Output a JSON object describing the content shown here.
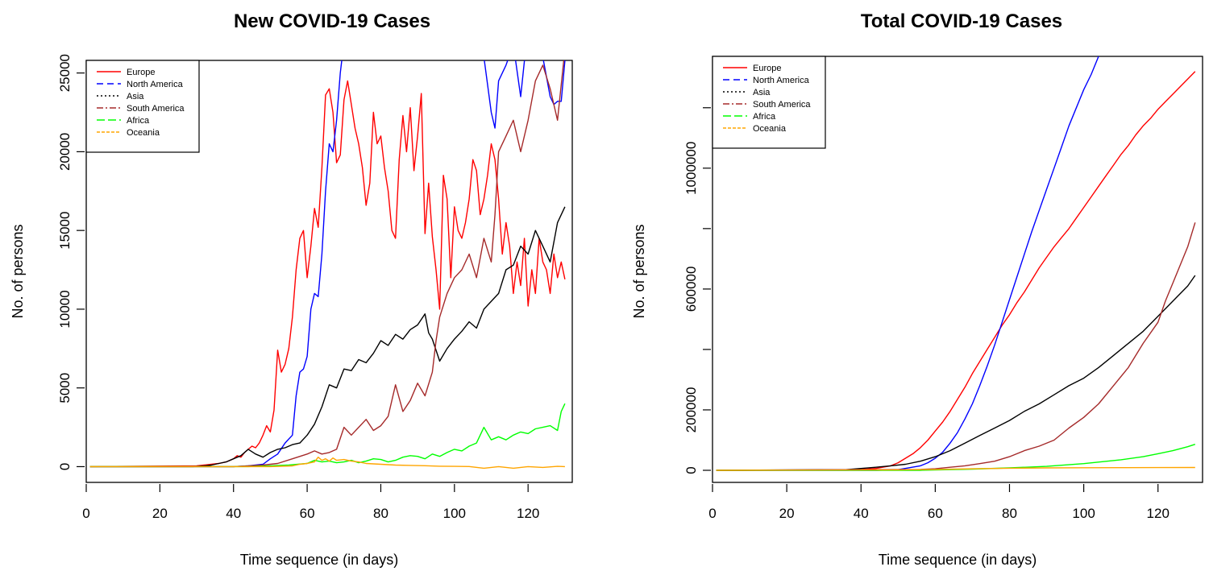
{
  "chart_data": [
    {
      "type": "line",
      "title": "New COVID-19 Cases",
      "xlabel": "Time sequence (in days)",
      "ylabel": "No. of persons",
      "xlim": [
        0,
        132
      ],
      "ylim": [
        -1000,
        25800
      ],
      "xticks": [
        0,
        20,
        40,
        60,
        80,
        100,
        120
      ],
      "yticks": [
        0,
        5000,
        10000,
        15000,
        20000,
        25000
      ],
      "ytick_labels": [
        "0",
        "5000",
        "10000",
        "15000",
        "20000",
        "25000"
      ],
      "grid": false,
      "legend_position": "top-left",
      "series": [
        {
          "name": "Europe",
          "color": "#ff0000",
          "dash": "solid",
          "x": [
            1,
            30,
            32,
            34,
            36,
            38,
            40,
            41,
            42,
            43,
            44,
            45,
            46,
            47,
            48,
            49,
            50,
            51,
            52,
            53,
            54,
            55,
            56,
            57,
            58,
            59,
            60,
            61,
            62,
            63,
            64,
            65,
            66,
            67,
            68,
            69,
            70,
            71,
            72,
            73,
            74,
            75,
            76,
            77,
            78,
            79,
            80,
            81,
            82,
            83,
            84,
            85,
            86,
            87,
            88,
            89,
            90,
            91,
            92,
            93,
            94,
            95,
            96,
            97,
            98,
            99,
            100,
            101,
            102,
            103,
            104,
            105,
            106,
            107,
            108,
            109,
            110,
            111,
            112,
            113,
            114,
            115,
            116,
            117,
            118,
            119,
            120,
            121,
            122,
            123,
            124,
            125,
            126,
            127,
            128,
            129,
            130
          ],
          "values": [
            0,
            50,
            100,
            150,
            200,
            300,
            500,
            700,
            600,
            900,
            1100,
            1300,
            1200,
            1500,
            2000,
            2600,
            2200,
            3600,
            7400,
            6000,
            6500,
            7500,
            9500,
            12500,
            14500,
            15000,
            12000,
            14000,
            16400,
            15200,
            19000,
            23600,
            24000,
            22500,
            19300,
            19800,
            23300,
            24500,
            23000,
            21500,
            20500,
            19000,
            16600,
            18000,
            22500,
            20500,
            21000,
            19000,
            17500,
            15000,
            14500,
            19500,
            22300,
            20000,
            22800,
            18800,
            21000,
            23700,
            14800,
            18000,
            14600,
            12500,
            10000,
            18500,
            17000,
            12000,
            16500,
            15000,
            14500,
            15500,
            17000,
            19500,
            18800,
            16000,
            17000,
            18500,
            20500,
            19500,
            17000,
            13500,
            15500,
            14000,
            11000,
            13000,
            11500,
            14500,
            10200,
            12500,
            11000,
            14500,
            13000,
            12500,
            11000,
            13500,
            12000,
            13000,
            11900
          ]
        },
        {
          "name": "North America",
          "color": "#0000ff",
          "dash": "8,5",
          "x": [
            1,
            40,
            44,
            48,
            50,
            52,
            54,
            56,
            57,
            58,
            59,
            60,
            61,
            62,
            63,
            64,
            65,
            66,
            67,
            68,
            69,
            70,
            72,
            74,
            76,
            78,
            80,
            82,
            84,
            86,
            88,
            90,
            92,
            94,
            96,
            98,
            100,
            102,
            104,
            106,
            108,
            110,
            111,
            112,
            114,
            116,
            118,
            120,
            122,
            124,
            126,
            127,
            128,
            129,
            130
          ],
          "values": [
            0,
            0,
            50,
            150,
            500,
            800,
            1500,
            2000,
            4500,
            6000,
            6200,
            7000,
            10000,
            11000,
            10800,
            13500,
            17500,
            20500,
            20000,
            22000,
            25000,
            27000,
            28500,
            28000,
            27500,
            28000,
            29000,
            28500,
            28000,
            27800,
            28000,
            27500,
            28000,
            29000,
            27600,
            28500,
            28000,
            27500,
            28500,
            27000,
            26000,
            22500,
            21500,
            24500,
            25500,
            26800,
            23500,
            28000,
            27000,
            26000,
            23500,
            23000,
            23200,
            23200,
            25800
          ]
        },
        {
          "name": "Asia",
          "color": "#000000",
          "dash": "2,3",
          "x": [
            1,
            29,
            32,
            34,
            36,
            38,
            40,
            42,
            44,
            46,
            48,
            50,
            52,
            54,
            56,
            58,
            60,
            62,
            64,
            66,
            68,
            70,
            72,
            74,
            76,
            78,
            80,
            82,
            84,
            86,
            88,
            90,
            92,
            93,
            94,
            96,
            98,
            100,
            102,
            104,
            106,
            108,
            110,
            112,
            114,
            116,
            118,
            120,
            122,
            124,
            126,
            128,
            130
          ],
          "values": [
            0,
            0,
            50,
            100,
            200,
            300,
            500,
            700,
            1100,
            800,
            600,
            900,
            1100,
            1200,
            1400,
            1500,
            2000,
            2700,
            3800,
            5200,
            5000,
            6200,
            6100,
            6800,
            6600,
            7200,
            8000,
            7700,
            8400,
            8100,
            8700,
            9000,
            9700,
            8500,
            8100,
            6700,
            7500,
            8100,
            8600,
            9200,
            8800,
            10000,
            10500,
            11000,
            12500,
            12800,
            14000,
            13500,
            15000,
            14000,
            13000,
            15500,
            16500
          ]
        },
        {
          "name": "South America",
          "color": "#a52a2a",
          "dash": "8,3,2,3",
          "x": [
            1,
            40,
            44,
            48,
            52,
            56,
            60,
            62,
            64,
            66,
            68,
            70,
            72,
            74,
            76,
            78,
            80,
            82,
            84,
            86,
            88,
            90,
            92,
            94,
            95,
            96,
            98,
            100,
            102,
            104,
            106,
            108,
            110,
            111,
            112,
            114,
            116,
            118,
            120,
            122,
            124,
            126,
            128,
            130
          ],
          "values": [
            0,
            0,
            50,
            100,
            200,
            500,
            800,
            1000,
            800,
            900,
            1100,
            2500,
            2000,
            2500,
            3000,
            2300,
            2600,
            3200,
            5200,
            3500,
            4200,
            5300,
            4500,
            6000,
            8000,
            9500,
            11000,
            12000,
            12500,
            13500,
            12000,
            14500,
            13000,
            16000,
            20000,
            21000,
            22000,
            20000,
            22000,
            24500,
            25500,
            24000,
            22000,
            26500
          ]
        },
        {
          "name": "Africa",
          "color": "#00ff00",
          "dash": "10,4",
          "x": [
            1,
            44,
            50,
            55,
            60,
            62,
            64,
            66,
            68,
            70,
            72,
            74,
            76,
            78,
            80,
            82,
            84,
            86,
            88,
            90,
            92,
            94,
            96,
            98,
            100,
            102,
            104,
            106,
            108,
            110,
            112,
            114,
            116,
            118,
            120,
            122,
            124,
            126,
            128,
            129,
            130
          ],
          "values": [
            0,
            0,
            50,
            100,
            200,
            400,
            300,
            350,
            250,
            300,
            400,
            250,
            350,
            500,
            450,
            300,
            400,
            600,
            700,
            650,
            500,
            800,
            650,
            900,
            1100,
            1000,
            1300,
            1500,
            2500,
            1700,
            1900,
            1700,
            2000,
            2200,
            2100,
            2400,
            2500,
            2600,
            2300,
            3500,
            4000
          ]
        },
        {
          "name": "Oceania",
          "color": "#ffa500",
          "dash": "4,2",
          "x": [
            1,
            50,
            56,
            58,
            60,
            62,
            63,
            64,
            65,
            66,
            67,
            68,
            70,
            72,
            74,
            76,
            80,
            84,
            88,
            92,
            96,
            100,
            104,
            108,
            112,
            116,
            120,
            124,
            128,
            130
          ],
          "values": [
            0,
            0,
            50,
            150,
            200,
            300,
            600,
            400,
            500,
            350,
            550,
            400,
            450,
            350,
            300,
            200,
            150,
            100,
            80,
            60,
            30,
            20,
            10,
            -100,
            0,
            -100,
            0,
            -50,
            20,
            0
          ]
        }
      ]
    },
    {
      "type": "line",
      "title": "Total COVID-19 Cases",
      "xlabel": "Time sequence (in days)",
      "ylabel": "No. of persons",
      "xlim": [
        0,
        132
      ],
      "ylim": [
        -40000,
        1370000
      ],
      "xticks": [
        0,
        20,
        40,
        60,
        80,
        100,
        120
      ],
      "yticks": [
        0,
        200000,
        400000,
        600000,
        800000,
        1000000,
        1200000
      ],
      "ytick_labels": [
        "0",
        "200000",
        "",
        "600000",
        "",
        "1000000",
        ""
      ],
      "grid": false,
      "legend_position": "top-left",
      "series": [
        {
          "name": "Europe",
          "color": "#ff0000",
          "dash": "solid",
          "x": [
            1,
            36,
            40,
            44,
            48,
            50,
            52,
            54,
            56,
            58,
            60,
            62,
            64,
            66,
            68,
            70,
            72,
            74,
            76,
            78,
            80,
            82,
            84,
            86,
            88,
            90,
            92,
            94,
            96,
            98,
            100,
            102,
            104,
            106,
            108,
            110,
            112,
            114,
            116,
            118,
            120,
            122,
            124,
            126,
            128,
            130
          ],
          "values": [
            0,
            1000,
            3000,
            6000,
            15000,
            25000,
            40000,
            55000,
            75000,
            100000,
            130000,
            160000,
            195000,
            235000,
            275000,
            320000,
            360000,
            400000,
            440000,
            480000,
            515000,
            555000,
            590000,
            630000,
            670000,
            705000,
            740000,
            770000,
            800000,
            835000,
            870000,
            905000,
            940000,
            975000,
            1010000,
            1045000,
            1075000,
            1110000,
            1140000,
            1165000,
            1195000,
            1220000,
            1245000,
            1270000,
            1295000,
            1320000
          ]
        },
        {
          "name": "North America",
          "color": "#0000ff",
          "dash": "8,5",
          "x": [
            1,
            44,
            50,
            56,
            58,
            60,
            62,
            64,
            66,
            68,
            70,
            72,
            74,
            76,
            78,
            80,
            82,
            84,
            86,
            88,
            90,
            92,
            94,
            96,
            98,
            100,
            102,
            104,
            106,
            108
          ],
          "values": [
            0,
            0,
            2000,
            15000,
            25000,
            40000,
            60000,
            90000,
            125000,
            170000,
            220000,
            280000,
            345000,
            415000,
            490000,
            565000,
            640000,
            715000,
            790000,
            860000,
            930000,
            1000000,
            1070000,
            1140000,
            1200000,
            1260000,
            1310000,
            1370000,
            1420000,
            1480000
          ]
        },
        {
          "name": "Asia",
          "color": "#000000",
          "dash": "2,3",
          "x": [
            1,
            36,
            40,
            44,
            48,
            52,
            56,
            60,
            64,
            68,
            72,
            76,
            80,
            84,
            88,
            92,
            96,
            100,
            104,
            108,
            112,
            116,
            120,
            124,
            128,
            130
          ],
          "values": [
            0,
            2000,
            6000,
            10000,
            15000,
            20000,
            30000,
            45000,
            65000,
            90000,
            115000,
            140000,
            165000,
            195000,
            220000,
            250000,
            280000,
            305000,
            340000,
            380000,
            420000,
            460000,
            510000,
            560000,
            610000,
            645000
          ]
        },
        {
          "name": "South America",
          "color": "#a52a2a",
          "dash": "8,3,2,3",
          "x": [
            1,
            56,
            60,
            64,
            68,
            72,
            76,
            80,
            84,
            88,
            92,
            94,
            96,
            100,
            104,
            108,
            112,
            116,
            120,
            122,
            124,
            126,
            128,
            130
          ],
          "values": [
            0,
            3000,
            5000,
            10000,
            15000,
            22000,
            30000,
            45000,
            65000,
            80000,
            100000,
            120000,
            140000,
            175000,
            220000,
            280000,
            340000,
            420000,
            490000,
            560000,
            620000,
            680000,
            740000,
            820000
          ]
        },
        {
          "name": "Africa",
          "color": "#00ff00",
          "dash": "10,4",
          "x": [
            1,
            56,
            60,
            70,
            80,
            90,
            100,
            110,
            116,
            120,
            124,
            128,
            130
          ],
          "values": [
            0,
            0,
            1000,
            4000,
            8000,
            13000,
            22000,
            35000,
            45000,
            55000,
            65000,
            78000,
            86000
          ]
        },
        {
          "name": "Oceania",
          "color": "#ffa500",
          "dash": "4,2",
          "x": [
            1,
            50,
            60,
            70,
            80,
            90,
            100,
            110,
            120,
            130
          ],
          "values": [
            0,
            1500,
            3000,
            5000,
            7000,
            8000,
            8500,
            8800,
            9000,
            9200
          ]
        }
      ]
    }
  ]
}
